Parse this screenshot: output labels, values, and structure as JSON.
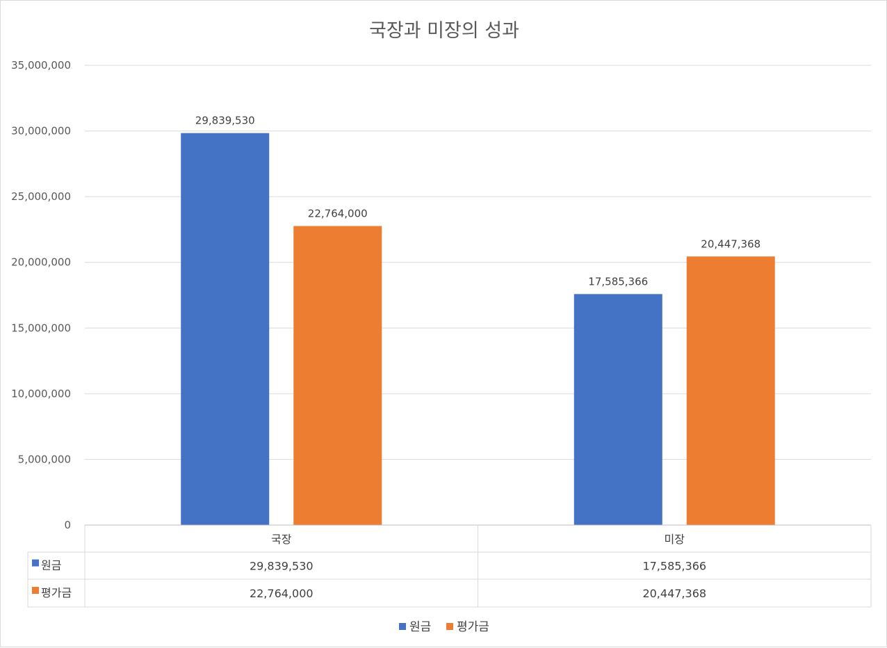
{
  "chart_data": {
    "type": "bar",
    "title": "국장과 미장의 성과",
    "categories": [
      "국장",
      "미장"
    ],
    "series": [
      {
        "name": "원금",
        "color": "#4472C4",
        "values": [
          29839530,
          17585366
        ]
      },
      {
        "name": "평가금",
        "color": "#ED7D31",
        "values": [
          22764000,
          20447368
        ]
      }
    ],
    "ylim": [
      0,
      35000000
    ],
    "yticks": [
      0,
      5000000,
      10000000,
      15000000,
      20000000,
      25000000,
      30000000,
      35000000
    ],
    "gridlines": true,
    "data_table": true,
    "legend": "bottom",
    "xlabel": "",
    "ylabel": ""
  }
}
